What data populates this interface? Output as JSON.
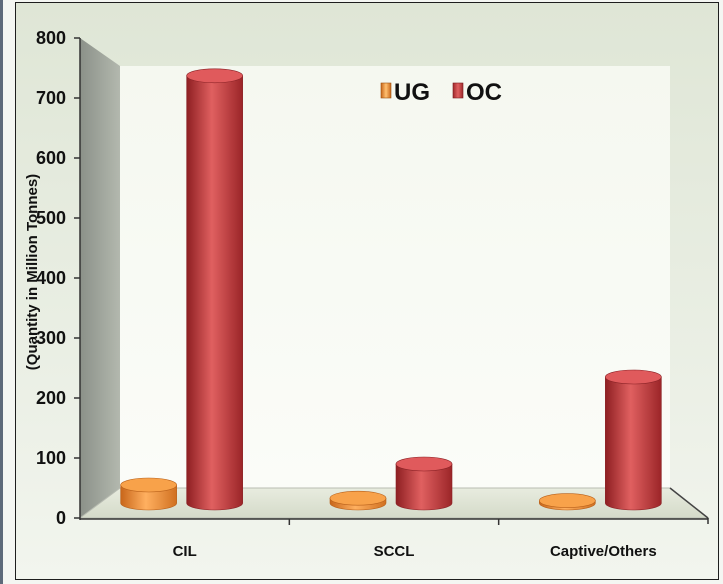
{
  "chart_data": {
    "type": "bar",
    "title": "",
    "xlabel": "",
    "ylabel": "(Quantity in Million Tonnes)",
    "ylim": [
      0,
      800
    ],
    "yticks": [
      "0",
      "100",
      "200",
      "300",
      "400",
      "500",
      "600",
      "700",
      "800"
    ],
    "categories": [
      "CIL",
      "SCCL",
      "Captive/Others"
    ],
    "series": [
      {
        "name": "UG",
        "values": [
          30,
          8,
          4
        ],
        "color": "#f08a28"
      },
      {
        "name": "OC",
        "values": [
          712,
          65,
          210
        ],
        "color": "#c2393d"
      }
    ],
    "legend_position": "top-center",
    "grid": false
  }
}
